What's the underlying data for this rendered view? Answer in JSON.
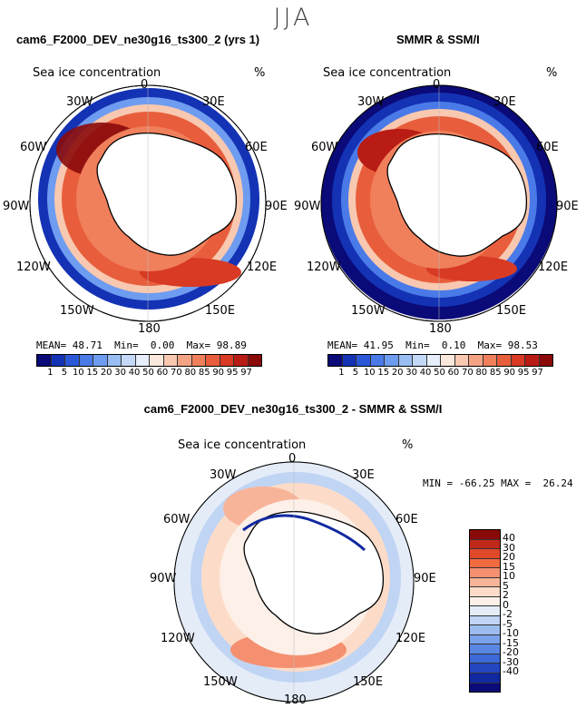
{
  "season": "JJA",
  "panels": {
    "model": {
      "title": "cam6_F2000_DEV_ne30g16_ts300_2 (yrs 1)",
      "variable": "Sea ice concentration",
      "units": "%",
      "mean_label": "MEAN=",
      "mean": "48.71",
      "min_label": "Min=",
      "min": "0.00",
      "max_label": "Max=",
      "max": "98.89"
    },
    "obs": {
      "title": "SMMR & SSM/I",
      "variable": "Sea ice concentration",
      "units": "%",
      "mean_label": "MEAN=",
      "mean": "41.95",
      "min_label": "Min=",
      "min": "0.10",
      "max_label": "Max=",
      "max": "98.53"
    },
    "diff": {
      "title": "cam6_F2000_DEV_ne30g16_ts300_2 - SMMR & SSM/I",
      "variable": "Sea ice concentration",
      "units": "%",
      "minmax": "MIN = -66.25 MAX =  26.24"
    }
  },
  "lon_labels": {
    "top": "0",
    "ne": "30E",
    "e60": "60E",
    "e90": "90E",
    "e120": "120E",
    "e150": "150E",
    "bottom": "180",
    "w150": "150W",
    "w120": "120W",
    "w90": "90W",
    "w60": "60W",
    "nw": "30W"
  },
  "ice_colorbar": {
    "colors": [
      "#0a0a78",
      "#1432b4",
      "#2a58d8",
      "#4a7ae8",
      "#6e9cf0",
      "#98bef4",
      "#c4d8f8",
      "#e6eefa",
      "#fbe8dc",
      "#f8c8b0",
      "#f4a484",
      "#f0805c",
      "#e85e3c",
      "#d83a24",
      "#b81c14",
      "#8a0a0a"
    ],
    "ticks": [
      "1",
      "5",
      "10",
      "15",
      "20",
      "30",
      "40",
      "50",
      "60",
      "70",
      "80",
      "85",
      "90",
      "95",
      "97"
    ]
  },
  "diff_colorbar": {
    "colors": [
      "#8a0a0a",
      "#c0281a",
      "#e04828",
      "#f06a40",
      "#f49070",
      "#f8b498",
      "#fcdcc8",
      "#fdf0e8",
      "#e4ecf8",
      "#c0d4f4",
      "#9cbcf0",
      "#7aa2ec",
      "#5a86e4",
      "#3c68d8",
      "#2446c0",
      "#1028a0",
      "#0a0a78"
    ],
    "ticks": [
      "40",
      "30",
      "20",
      "15",
      "10",
      "5",
      "2",
      "0",
      "-2",
      "-5",
      "-10",
      "-15",
      "-20",
      "-30",
      "-40"
    ]
  }
}
